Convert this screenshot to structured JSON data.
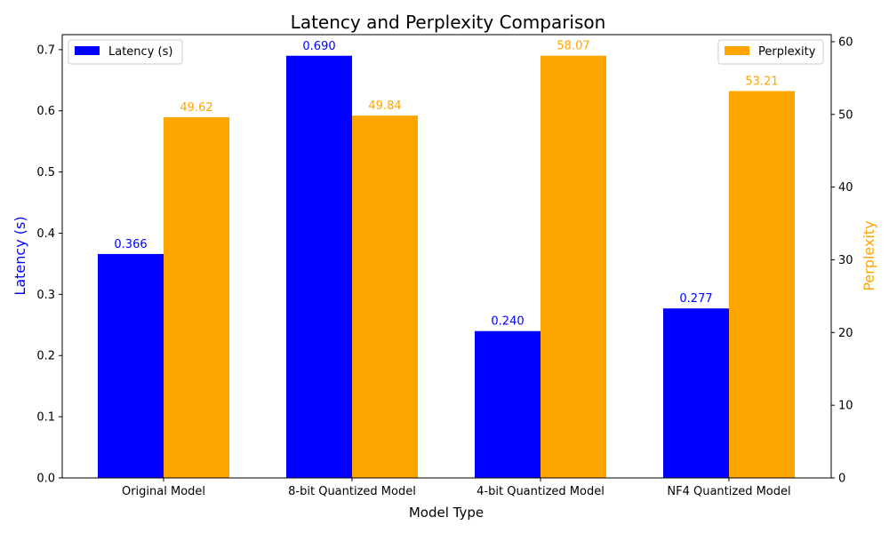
{
  "chart_data": {
    "type": "bar",
    "title": "Latency and Perplexity Comparison",
    "xlabel": "Model Type",
    "categories": [
      "Original Model",
      "8-bit Quantized Model",
      "4-bit Quantized Model",
      "NF4 Quantized Model"
    ],
    "series": [
      {
        "name": "Latency (s)",
        "axis": "left",
        "color": "#0000ff",
        "values": [
          0.366,
          0.69,
          0.24,
          0.277
        ],
        "labels": [
          "0.366",
          "0.690",
          "0.240",
          "0.277"
        ]
      },
      {
        "name": "Perplexity",
        "axis": "right",
        "color": "#ffa500",
        "values": [
          49.62,
          49.84,
          58.07,
          53.21
        ],
        "labels": [
          "49.62",
          "49.84",
          "58.07",
          "53.21"
        ]
      }
    ],
    "y_left": {
      "label": "Latency (s)",
      "label_color": "#0000ff",
      "ylim": [
        0,
        0.7245
      ],
      "ticks": [
        0.0,
        0.1,
        0.2,
        0.3,
        0.4,
        0.5,
        0.6,
        0.7
      ],
      "tick_labels": [
        "0.0",
        "0.1",
        "0.2",
        "0.3",
        "0.4",
        "0.5",
        "0.6",
        "0.7"
      ]
    },
    "y_right": {
      "label": "Perplexity",
      "label_color": "#ffa500",
      "ylim": [
        0,
        60.97
      ],
      "ticks": [
        0,
        10,
        20,
        30,
        40,
        50,
        60
      ],
      "tick_labels": [
        "0",
        "10",
        "20",
        "30",
        "40",
        "50",
        "60"
      ]
    },
    "legends": [
      {
        "placement": "top-left",
        "entries": [
          "Latency (s)"
        ]
      },
      {
        "placement": "top-right",
        "entries": [
          "Perplexity"
        ]
      }
    ],
    "grid": false
  }
}
